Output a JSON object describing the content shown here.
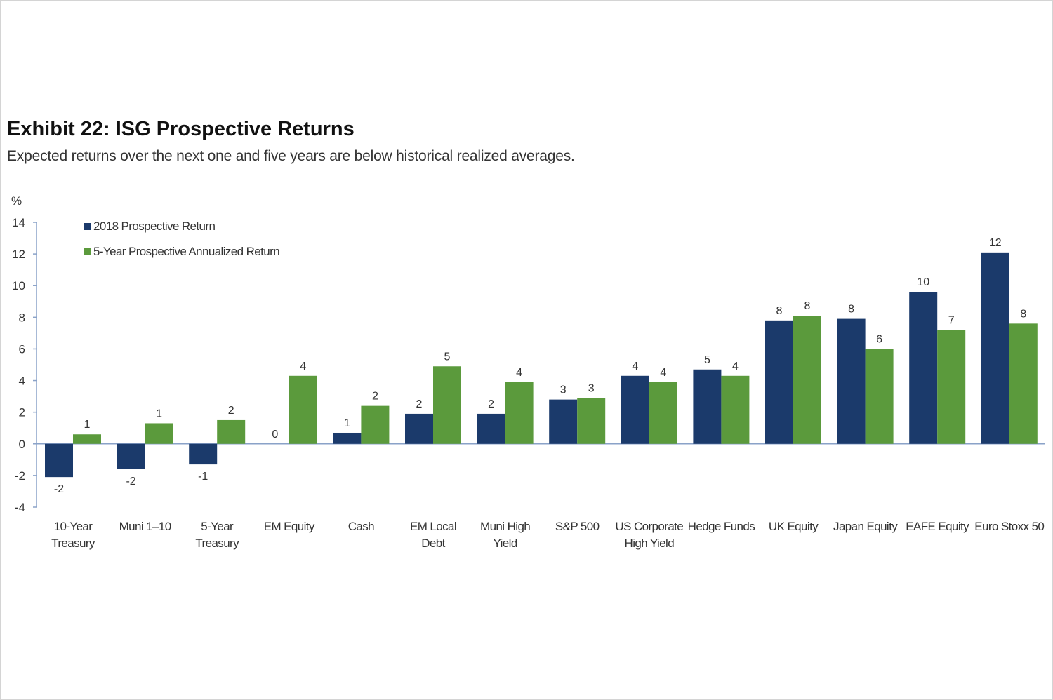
{
  "exhibit": {
    "title": "Exhibit 22: ISG Prospective Returns",
    "subtitle": "Expected returns over the next one and five years are below historical realized averages."
  },
  "chart_data": {
    "type": "bar",
    "y_unit_label": "%",
    "ylim": [
      -4,
      14
    ],
    "yticks": [
      -4,
      -2,
      0,
      2,
      4,
      6,
      8,
      10,
      12,
      14
    ],
    "grid": false,
    "legend_position": "top-left",
    "categories": [
      "10-Year Treasury",
      "Muni 1–10",
      "5-Year Treasury",
      "EM Equity",
      "Cash",
      "EM Local Debt",
      "Muni High Yield",
      "S&P 500",
      "US Corporate High Yield",
      "Hedge Funds",
      "UK Equity",
      "Japan Equity",
      "EAFE Equity",
      "Euro Stoxx 50"
    ],
    "category_lines": [
      [
        "10-Year",
        "Treasury"
      ],
      [
        "Muni 1–10"
      ],
      [
        "5-Year",
        "Treasury"
      ],
      [
        "EM Equity"
      ],
      [
        "Cash"
      ],
      [
        "EM Local",
        "Debt"
      ],
      [
        "Muni High",
        "Yield"
      ],
      [
        "S&P 500"
      ],
      [
        "US Corporate",
        "High Yield"
      ],
      [
        "Hedge Funds"
      ],
      [
        "UK Equity"
      ],
      [
        "Japan Equity"
      ],
      [
        "EAFE Equity"
      ],
      [
        "Euro Stoxx 50"
      ]
    ],
    "series": [
      {
        "name": "2018 Prospective Return",
        "color": "#1b3a6b",
        "values": [
          -2.1,
          -1.6,
          -1.3,
          0,
          0.7,
          1.9,
          1.9,
          2.8,
          4.3,
          4.7,
          7.8,
          7.9,
          9.6,
          12.1
        ],
        "labels": [
          "-2",
          "-2",
          "-1",
          "0",
          "1",
          "2",
          "2",
          "3",
          "4",
          "5",
          "8",
          "8",
          "10",
          "12"
        ]
      },
      {
        "name": "5-Year Prospective Annualized Return",
        "color": "#5b9a3c",
        "values": [
          0.6,
          1.3,
          1.5,
          4.3,
          2.4,
          4.9,
          3.9,
          2.9,
          3.9,
          4.3,
          8.1,
          6.0,
          7.2,
          7.6
        ],
        "labels": [
          "1",
          "1",
          "2",
          "4",
          "2",
          "5",
          "4",
          "3",
          "4",
          "4",
          "8",
          "6",
          "7",
          "8"
        ]
      }
    ]
  }
}
